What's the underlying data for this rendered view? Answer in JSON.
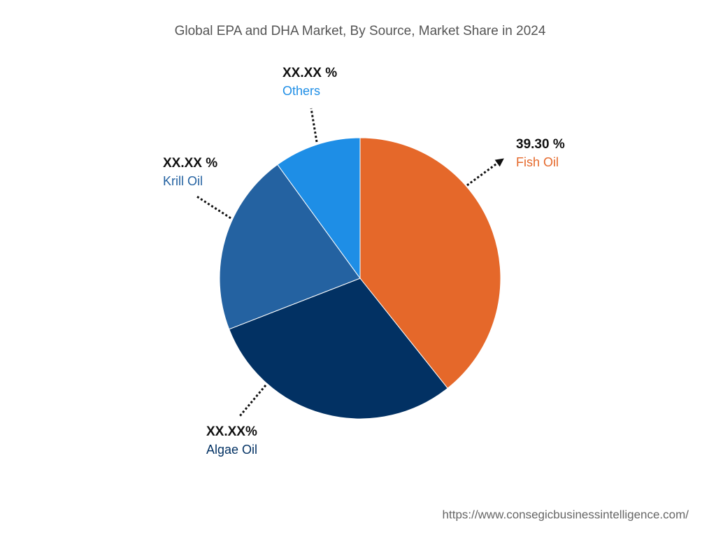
{
  "chart_data": {
    "type": "pie",
    "title": "Global EPA and DHA Market, By Source, Market Share in 2024",
    "categories": [
      "Fish Oil",
      "Algae Oil",
      "Krill Oil",
      "Others"
    ],
    "values": [
      39.3,
      29.8,
      20.9,
      10.0
    ],
    "value_labels": [
      "39.30 %",
      "XX.XX%",
      "XX.XX %",
      "XX.XX %"
    ],
    "colors": [
      "#e5682a",
      "#023163",
      "#2462a1",
      "#1e8ee6"
    ],
    "source": "https://www.consegicbusinessintelligence.com/"
  }
}
